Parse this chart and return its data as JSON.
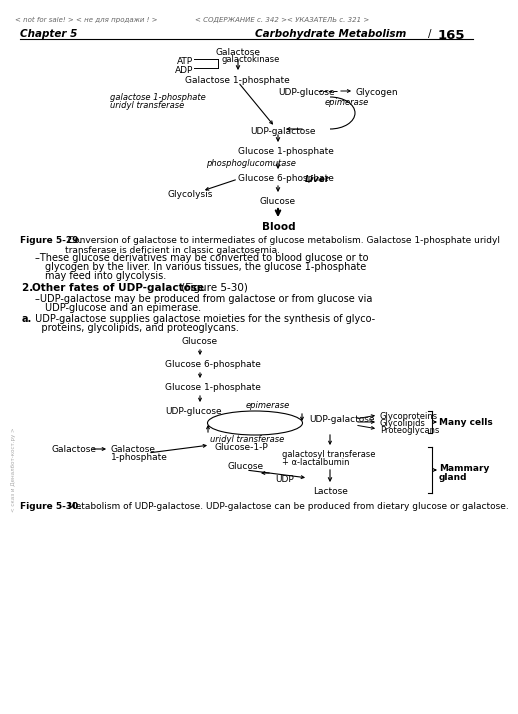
{
  "bg": "white",
  "header1": "< not for sale! > < не для продажи ! >",
  "header2": "< СОДЕРЖАНИЕ с. 342 >< УКАЗАТЕЛЬ с. 321 >",
  "ch_left": "Chapter 5",
  "ch_right": "Carbohydrate Metabolism",
  "page": "165",
  "cap29": "Figure 5-29.",
  "cap29b": " Conversion of galactose to intermediates of glucose metabolism. Galactose 1-phosphate uridyl\ntransferase is deficient in classic galactosemia.",
  "cap30": "Figure 5-30.",
  "cap30b": " Metabolism of UDP-galactose. UDP-galactose can be produced from dietary glucose or galactose.",
  "t_bullet1a": "–These glucose derivatives may be converted to blood glucose or to",
  "t_bullet1b": "glycogen by the liver. In various tissues, the glucose 1-phosphate",
  "t_bullet1c": "may feed into glycolysis.",
  "t_h2a": "2. ",
  "t_h2b": "Other fates of UDP-galactose",
  "t_h2c": " (Figure 5-30)",
  "t_b2a": "–UDP-galactose may be produced from galactose or from glucose via",
  "t_b2b": "UDP-glucose and an epimerase.",
  "t_b3a": "a.",
  "t_b3b": " UDP-galactose supplies galactose moieties for the synthesis of glyco-",
  "t_b3c": "   proteins, glycolipids, and proteoglycans."
}
